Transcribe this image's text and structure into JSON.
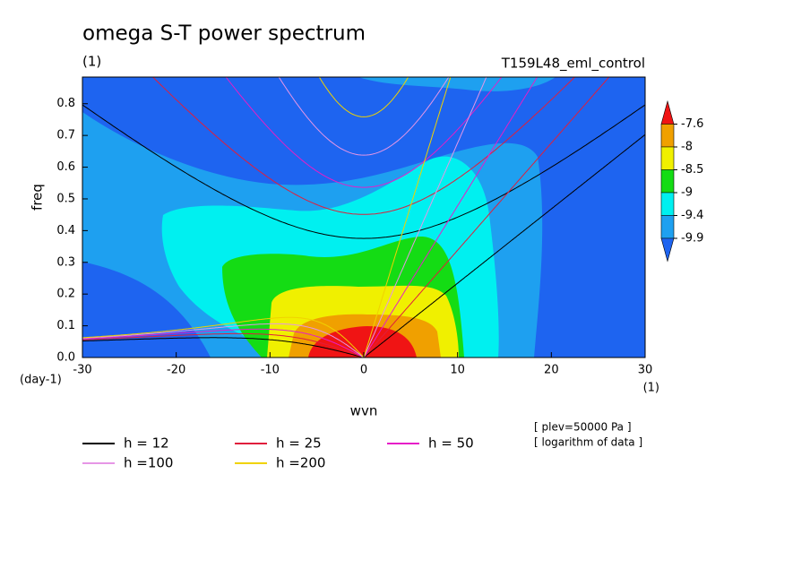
{
  "chart_data": {
    "type": "contour",
    "title": "omega S-T power spectrum",
    "subtitle": "(1)",
    "run_label": "T159L48_eml_control",
    "x_label": "wvn",
    "x_unit": "(1)",
    "y_label": "freq",
    "y_unit": "(day-1)",
    "notes": [
      "[ plev=50000 Pa ]",
      "[ logarithm of data ]"
    ],
    "xlim": [
      -30,
      30
    ],
    "xticks": [
      -30,
      -20,
      -10,
      0,
      10,
      20,
      30
    ],
    "ylim": [
      0,
      0.884
    ],
    "yticks": [
      {
        "value": 0,
        "label": "0.0"
      },
      0.1,
      0.2,
      0.3,
      0.4,
      0.5,
      0.6,
      0.7,
      0.8
    ],
    "levels": [
      -7.6,
      -8,
      -8.5,
      -9,
      -9.4,
      -9.9
    ],
    "colors": [
      "#f01414",
      "#f0a000",
      "#f0f000",
      "#14dc14",
      "#00f0f0",
      "#1ea0f0",
      "#1e64f0"
    ],
    "series": [
      {
        "name": "h = 12",
        "h": 12,
        "color": "#000000"
      },
      {
        "name": "h = 25",
        "h": 25,
        "color": "#e01e3c"
      },
      {
        "name": "h = 50",
        "h": 50,
        "color": "#e61ec8"
      },
      {
        "name": "h =100",
        "h": 100,
        "color": "#e696e6"
      },
      {
        "name": "h =200",
        "h": 200,
        "color": "#f0d200"
      }
    ]
  }
}
